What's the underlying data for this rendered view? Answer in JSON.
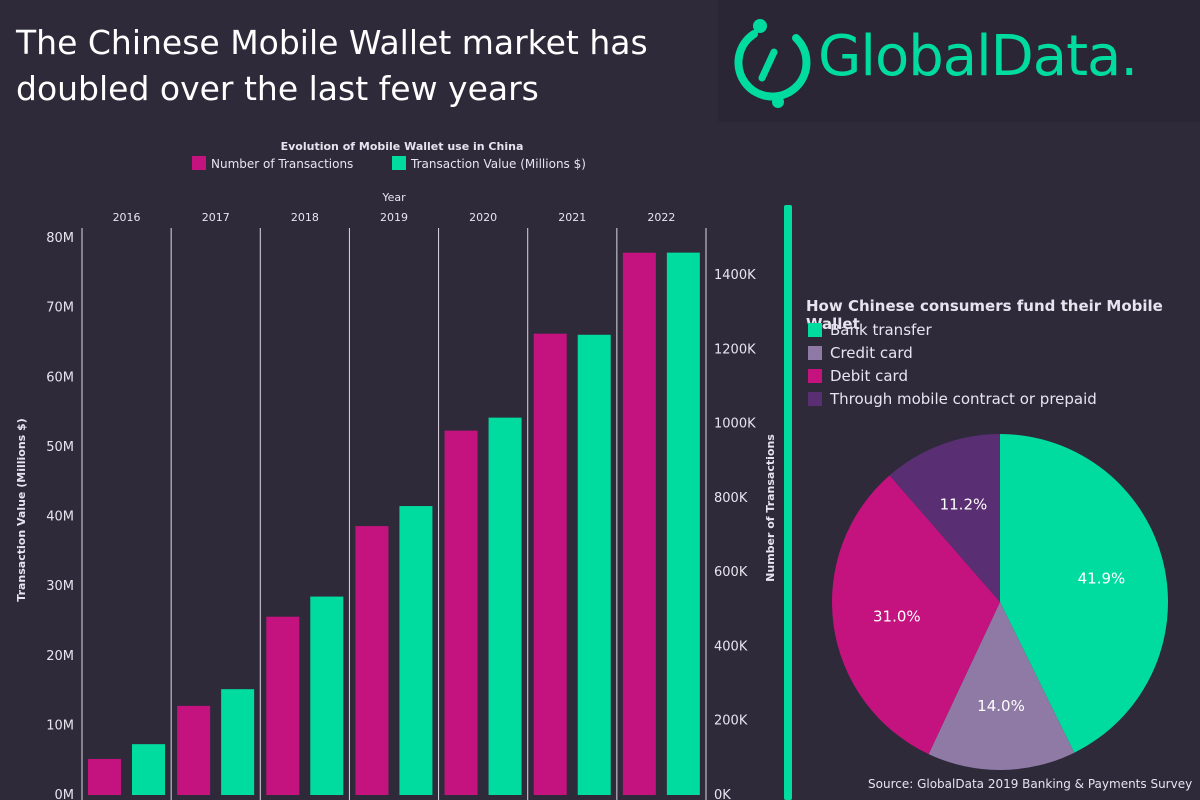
{
  "headline": "The Chinese Mobile Wallet market has doubled over the last few years",
  "logo": {
    "text": "GlobalData."
  },
  "source": "Source: GlobalData 2019 Banking & Payments Survey",
  "colors": {
    "background": "#2e2a3a",
    "magenta": "#c4137f",
    "green": "#00dca0",
    "lavender": "#8f7aa6",
    "purple": "#5a2e72"
  },
  "chart_data": [
    {
      "type": "bar",
      "title": "Evolution of Mobile Wallet use in China",
      "xlabel": "Year",
      "categories": [
        "2016",
        "2017",
        "2018",
        "2019",
        "2020",
        "2021",
        "2022"
      ],
      "series": [
        {
          "name": "Number of Transactions",
          "axis": "right",
          "color": "#c4137f",
          "values": [
            97,
            240,
            480,
            724,
            981,
            1242,
            1460
          ]
        },
        {
          "name": "Transaction Value (Millions $)",
          "axis": "left",
          "color": "#00dca0",
          "values": [
            7.3,
            15.2,
            28.5,
            41.5,
            54.2,
            66.1,
            77.9
          ]
        }
      ],
      "ylabel": "Transaction Value (Millions $)",
      "ylim": [
        0,
        80
      ],
      "yticks": [
        "0M",
        "10M",
        "20M",
        "30M",
        "40M",
        "50M",
        "60M",
        "70M",
        "80M"
      ],
      "y2label": "Number of Transactions",
      "y2lim": [
        0,
        1500
      ],
      "y2ticks": [
        "0K",
        "200K",
        "400K",
        "600K",
        "800K",
        "1000K",
        "1200K",
        "1400K"
      ],
      "legend": "top"
    },
    {
      "type": "pie",
      "title": "How Chinese consumers fund their Mobile Wallet",
      "slices": [
        {
          "label": "Bank transfer",
          "value": 41.9,
          "display": "41.9%",
          "color": "#00dca0"
        },
        {
          "label": "Credit card",
          "value": 14.0,
          "display": "14.0%",
          "color": "#8f7aa6"
        },
        {
          "label": "Debit card",
          "value": 31.0,
          "display": "31.0%",
          "color": "#c4137f"
        },
        {
          "label": "Through mobile contract or prepaid",
          "value": 11.2,
          "display": "11.2%",
          "color": "#5a2e72"
        }
      ],
      "legend": "top-left"
    }
  ]
}
